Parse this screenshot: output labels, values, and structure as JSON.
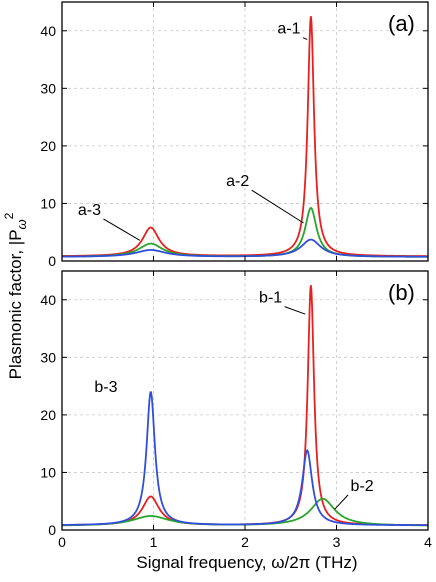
{
  "figure": {
    "ylabel_main": "Plasmonic factor, |P",
    "ylabel_sub": "ω",
    "ylabel_sup": "2",
    "xlabel": "Signal frequency, ω/2π (THz)"
  },
  "chart_data": [
    {
      "type": "line",
      "panel": "(a)",
      "xlim": [
        0,
        4
      ],
      "ylim": [
        0,
        45
      ],
      "xticks": [
        "0",
        "1",
        "2",
        "3",
        "4"
      ],
      "yticks": [
        "0",
        "10",
        "20",
        "30",
        "40"
      ],
      "grid": true,
      "series": [
        {
          "name": "a-1",
          "color": "#e8201f",
          "resonances": [
            {
              "f0": 0.97,
              "peak": 5.8,
              "hw": 0.11
            },
            {
              "f0": 2.72,
              "peak": 42.5,
              "hw": 0.042
            }
          ],
          "baseline": 0.8
        },
        {
          "name": "a-2",
          "color": "#2aa52a",
          "resonances": [
            {
              "f0": 0.97,
              "peak": 3.0,
              "hw": 0.16
            },
            {
              "f0": 2.72,
              "peak": 9.2,
              "hw": 0.075
            }
          ],
          "baseline": 0.7
        },
        {
          "name": "a-3",
          "color": "#2f4fd8",
          "resonances": [
            {
              "f0": 0.97,
              "peak": 1.9,
              "hw": 0.2
            },
            {
              "f0": 2.72,
              "peak": 3.7,
              "hw": 0.13
            }
          ],
          "baseline": 0.7
        }
      ],
      "annotations": [
        {
          "text": "a-1",
          "x": 2.48,
          "y": 39.5,
          "to_x": 2.68,
          "to_y": 38.5
        },
        {
          "text": "a-2",
          "x": 1.92,
          "y": 13.0,
          "to_x": 2.64,
          "to_y": 6.6
        },
        {
          "text": "a-3",
          "x": 0.3,
          "y": 8.0,
          "to_x": 0.85,
          "to_y": 3.6
        }
      ]
    },
    {
      "type": "line",
      "panel": "(b)",
      "xlim": [
        0,
        4
      ],
      "ylim": [
        0,
        45
      ],
      "xticks": [
        "0",
        "1",
        "2",
        "3",
        "4"
      ],
      "yticks": [
        "0",
        "10",
        "20",
        "30",
        "40"
      ],
      "grid": true,
      "series": [
        {
          "name": "b-1",
          "color": "#e8201f",
          "resonances": [
            {
              "f0": 0.97,
              "peak": 5.8,
              "hw": 0.11
            },
            {
              "f0": 2.72,
              "peak": 42.5,
              "hw": 0.042
            }
          ],
          "baseline": 0.8
        },
        {
          "name": "b-2",
          "color": "#2aa52a",
          "resonances": [
            {
              "f0": 0.97,
              "peak": 2.4,
              "hw": 0.24
            },
            {
              "f0": 2.85,
              "peak": 5.4,
              "hw": 0.16
            }
          ],
          "baseline": 0.7
        },
        {
          "name": "b-3",
          "color": "#2f4fd8",
          "resonances": [
            {
              "f0": 0.97,
              "peak": 24.0,
              "hw": 0.055
            },
            {
              "f0": 2.68,
              "peak": 13.8,
              "hw": 0.065
            }
          ],
          "baseline": 0.8
        }
      ],
      "annotations": [
        {
          "text": "b-1",
          "x": 2.28,
          "y": 39.5,
          "to_x": 2.66,
          "to_y": 37.5
        },
        {
          "text": "b-2",
          "x": 3.28,
          "y": 6.8,
          "to_x": 2.98,
          "to_y": 3.6
        },
        {
          "text": "b-3",
          "x": 0.48,
          "y": 24.0,
          "to_x": null,
          "to_y": null
        }
      ]
    }
  ]
}
